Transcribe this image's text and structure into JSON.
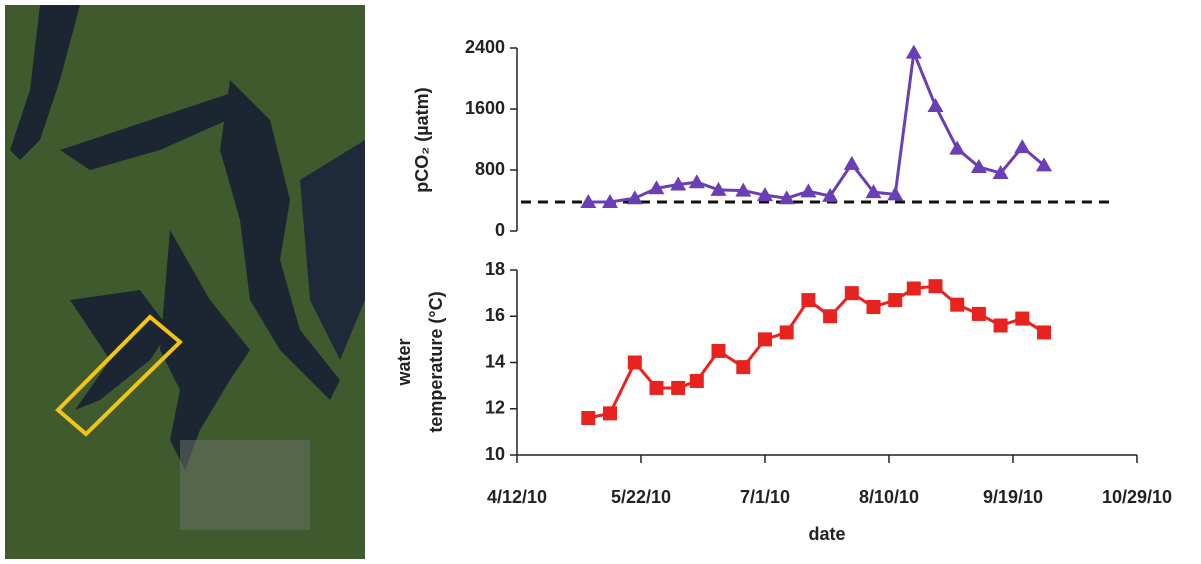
{
  "chart_data": [
    {
      "type": "line",
      "ylabel": "pCO₂ (µatm)",
      "x": [
        "2010-05-05",
        "2010-05-12",
        "2010-05-20",
        "2010-05-27",
        "2010-06-03",
        "2010-06-09",
        "2010-06-16",
        "2010-06-24",
        "2010-07-01",
        "2010-07-08",
        "2010-07-15",
        "2010-07-22",
        "2010-07-29",
        "2010-08-05",
        "2010-08-12",
        "2010-08-18",
        "2010-08-25",
        "2010-09-01",
        "2010-09-08",
        "2010-09-15",
        "2010-09-22",
        "2010-09-29"
      ],
      "series": [
        {
          "color": "#6a3fb5",
          "marker": "triangle",
          "values": [
            380,
            380,
            430,
            560,
            610,
            640,
            540,
            530,
            470,
            430,
            520,
            460,
            880,
            510,
            480,
            2340,
            1640,
            1080,
            840,
            760,
            1100,
            860
          ]
        }
      ],
      "reference_line": 380,
      "xlim": [
        "2010-04-12",
        "2010-10-29"
      ],
      "ylim": [
        0,
        2400
      ],
      "yticks": [
        0,
        800,
        1600,
        2400
      ]
    },
    {
      "type": "line",
      "ylabel": [
        "water",
        "temperature (°C)"
      ],
      "xlabel": "date",
      "x": [
        "2010-05-05",
        "2010-05-12",
        "2010-05-20",
        "2010-05-27",
        "2010-06-03",
        "2010-06-09",
        "2010-06-16",
        "2010-06-24",
        "2010-07-01",
        "2010-07-08",
        "2010-07-15",
        "2010-07-22",
        "2010-07-29",
        "2010-08-05",
        "2010-08-12",
        "2010-08-18",
        "2010-08-25",
        "2010-09-01",
        "2010-09-08",
        "2010-09-15",
        "2010-09-22",
        "2010-09-29"
      ],
      "series": [
        {
          "color": "#e8231f",
          "marker": "square",
          "values": [
            11.6,
            11.8,
            14.0,
            12.9,
            12.9,
            13.2,
            14.5,
            13.8,
            15.0,
            15.3,
            16.7,
            16.0,
            17.0,
            16.4,
            16.7,
            17.2,
            17.3,
            16.5,
            16.1,
            15.6,
            15.9,
            15.3
          ]
        }
      ],
      "xlim": [
        "2010-04-12",
        "2010-10-29"
      ],
      "xticks": [
        {
          "value": "2010-04-12",
          "label": "4/12/10"
        },
        {
          "value": "2010-05-22",
          "label": "5/22/10"
        },
        {
          "value": "2010-07-01",
          "label": "7/1/10"
        },
        {
          "value": "2010-08-10",
          "label": "8/10/10"
        },
        {
          "value": "2010-09-19",
          "label": "9/19/10"
        },
        {
          "value": "2010-10-29",
          "label": "10/29/10"
        }
      ],
      "ylim": [
        10,
        18
      ],
      "yticks": [
        10,
        12,
        14,
        16,
        18
      ]
    }
  ]
}
